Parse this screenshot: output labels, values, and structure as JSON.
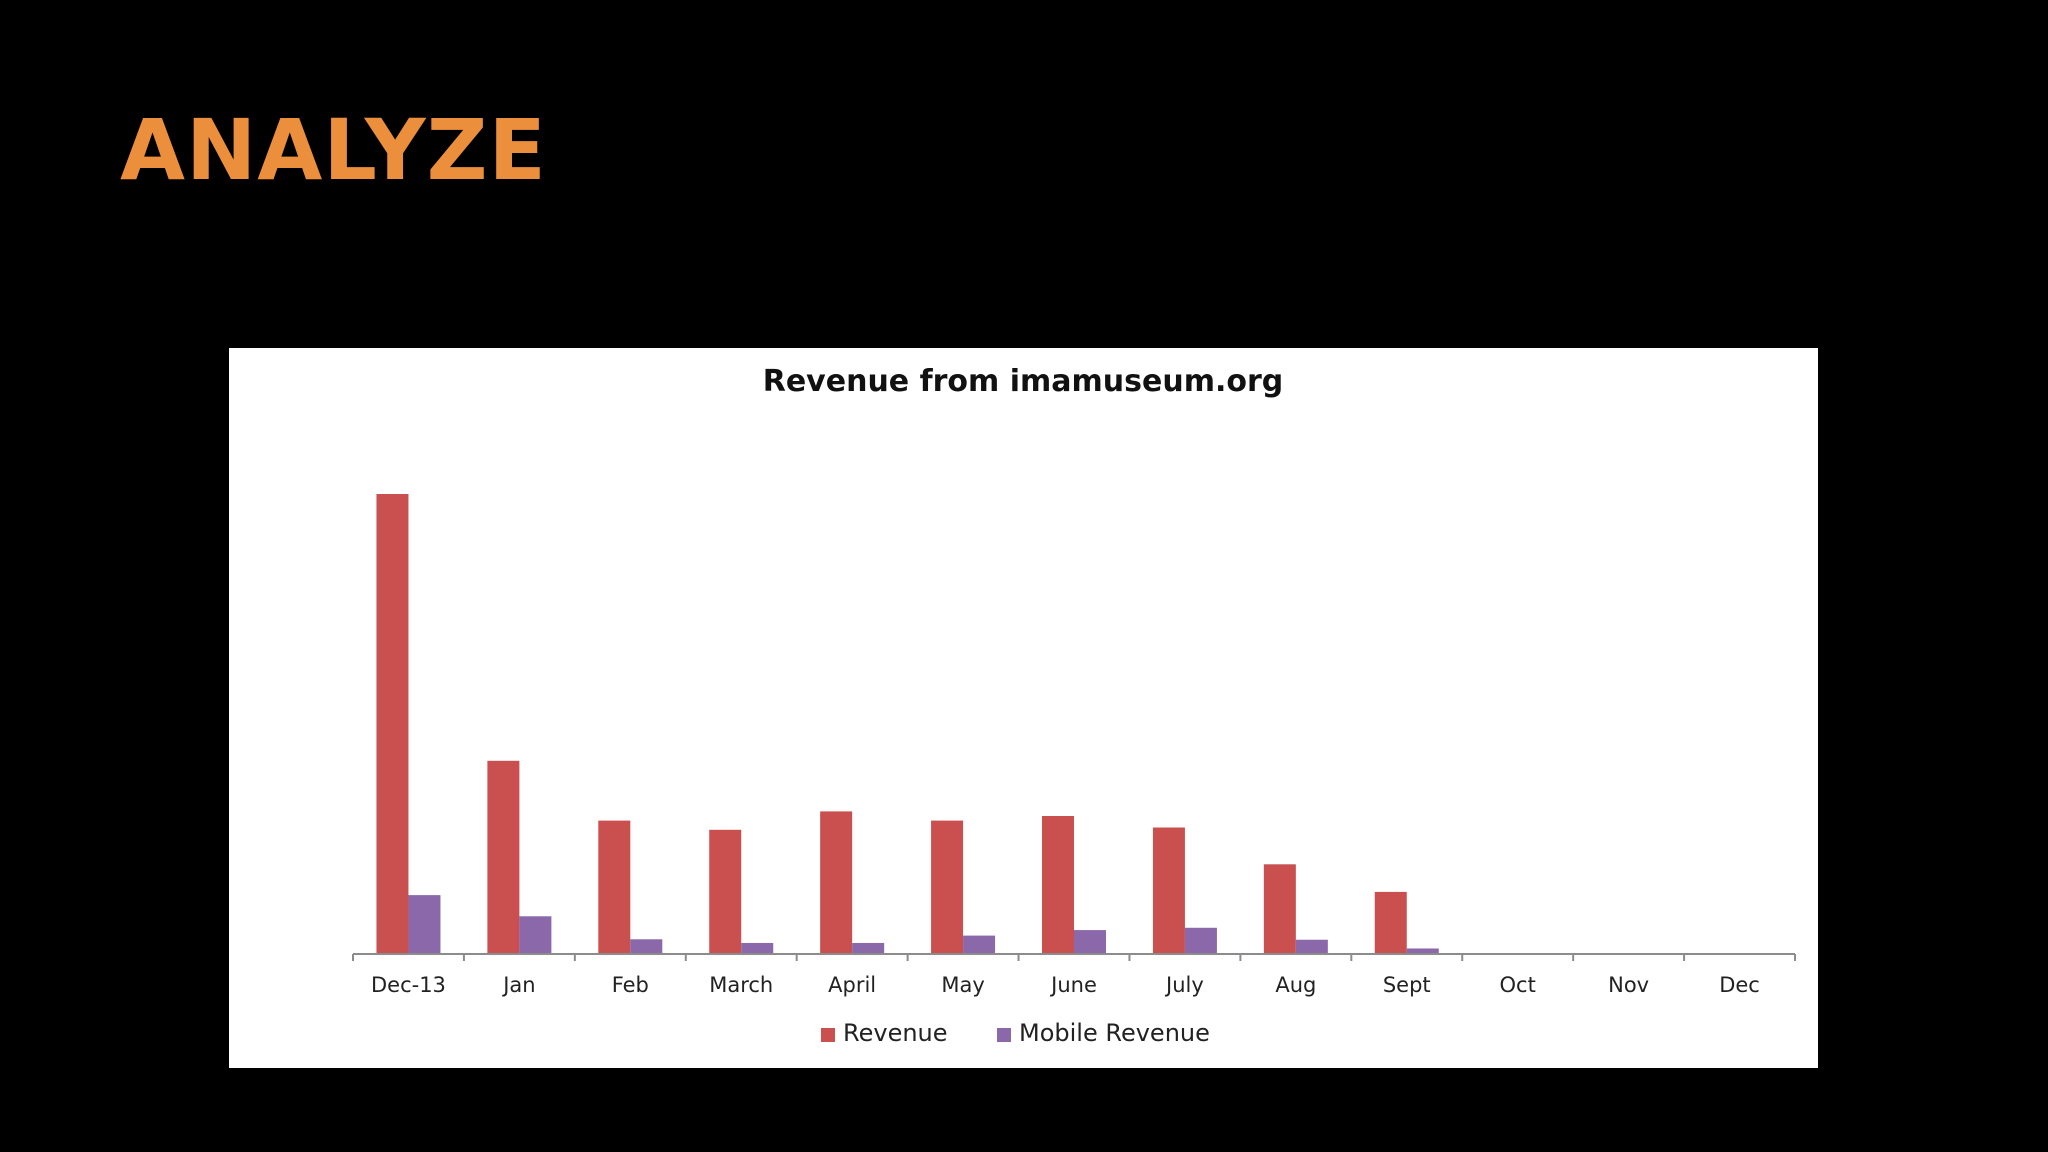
{
  "slide": {
    "title": "ANALYZE"
  },
  "colors": {
    "title": "#eb8f3c",
    "background": "#000000",
    "panel": "#ffffff",
    "revenue": "#c9504f",
    "mobile_revenue": "#8a68aa",
    "axis": "#8c8c8c"
  },
  "chart_data": {
    "type": "bar",
    "title": "Revenue from imamuseum.org",
    "xlabel": "",
    "ylabel": "",
    "ylim": [
      0,
      100
    ],
    "y_axis_visible": false,
    "grid": false,
    "legend_position": "bottom",
    "categories": [
      "Dec-13",
      "Jan",
      "Feb",
      "March",
      "April",
      "May",
      "June",
      "July",
      "Aug",
      "Sept",
      "Oct",
      "Nov",
      "Dec"
    ],
    "series": [
      {
        "name": "Revenue",
        "color": "#c9504f",
        "values": [
          100,
          42,
          29,
          27,
          31,
          29,
          30,
          27.5,
          19.5,
          13.5,
          0,
          0,
          0
        ]
      },
      {
        "name": "Mobile Revenue",
        "color": "#8a68aa",
        "values": [
          12.8,
          8.2,
          3.2,
          2.4,
          2.4,
          4,
          5.2,
          5.7,
          3.1,
          1.2,
          0,
          0,
          0
        ]
      }
    ]
  }
}
